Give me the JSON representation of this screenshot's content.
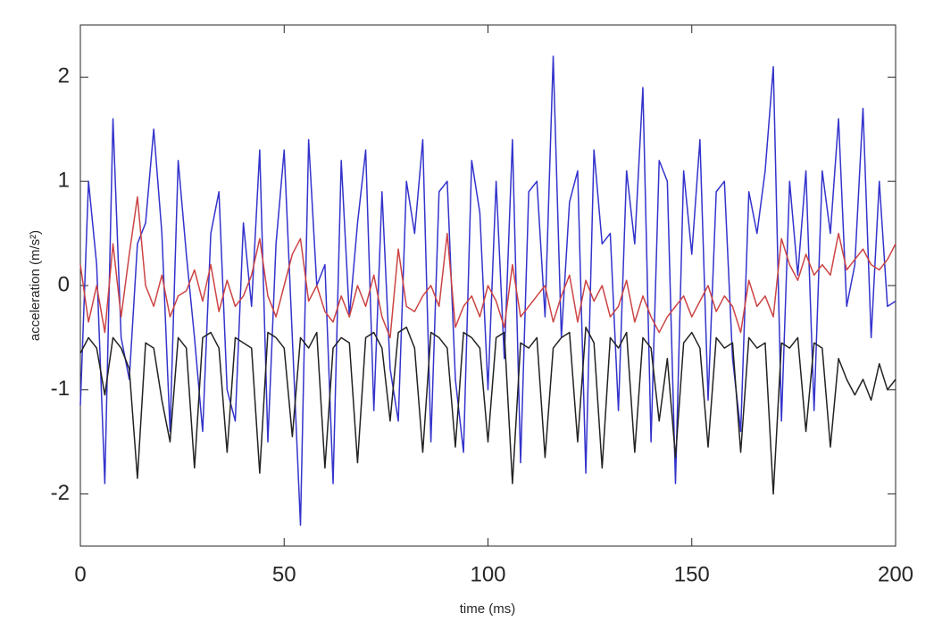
{
  "chart_data": {
    "type": "line",
    "xlabel": "time (ms)",
    "ylabel": "acceleration (m/s²)",
    "xlim": [
      0,
      200
    ],
    "ylim": [
      -2.5,
      2.5
    ],
    "xticks": [
      0,
      50,
      100,
      150,
      200
    ],
    "yticks": [
      -2,
      -1,
      0,
      1,
      2
    ],
    "grid": false,
    "x": [
      0,
      2,
      4,
      6,
      8,
      10,
      12,
      14,
      16,
      18,
      20,
      22,
      24,
      26,
      28,
      30,
      32,
      34,
      36,
      38,
      40,
      42,
      44,
      46,
      48,
      50,
      52,
      54,
      56,
      58,
      60,
      62,
      64,
      66,
      68,
      70,
      72,
      74,
      76,
      78,
      80,
      82,
      84,
      86,
      88,
      90,
      92,
      94,
      96,
      98,
      100,
      102,
      104,
      106,
      108,
      110,
      112,
      114,
      116,
      118,
      120,
      122,
      124,
      126,
      128,
      130,
      132,
      134,
      136,
      138,
      140,
      142,
      144,
      146,
      148,
      150,
      152,
      154,
      156,
      158,
      160,
      162,
      164,
      166,
      168,
      170,
      172,
      174,
      176,
      178,
      180,
      182,
      184,
      186,
      188,
      190,
      192,
      194,
      196,
      198,
      200
    ],
    "series": [
      {
        "color": "#3333cc",
        "values": [
          -1.15,
          1.0,
          0.2,
          -1.9,
          1.6,
          -0.5,
          -0.9,
          0.4,
          0.6,
          1.5,
          0.5,
          -1.4,
          1.2,
          0.3,
          -0.5,
          -1.4,
          0.5,
          0.9,
          -1.0,
          -1.3,
          0.6,
          -0.2,
          1.3,
          -1.5,
          0.4,
          1.3,
          -0.5,
          -2.3,
          1.4,
          0.0,
          0.2,
          -1.9,
          1.2,
          -0.3,
          0.6,
          1.3,
          -1.2,
          0.9,
          -0.8,
          -1.3,
          1.0,
          0.5,
          1.4,
          -1.5,
          0.9,
          1.0,
          -0.9,
          -1.6,
          1.2,
          0.7,
          -1.0,
          1.0,
          -0.7,
          1.4,
          -1.7,
          0.9,
          1.0,
          -0.3,
          2.2,
          -0.5,
          0.8,
          1.1,
          -1.8,
          1.3,
          0.4,
          0.5,
          -1.2,
          1.1,
          0.4,
          1.9,
          -1.5,
          1.2,
          1.0,
          -1.9,
          1.1,
          0.3,
          1.4,
          -1.1,
          0.9,
          1.0,
          -0.7,
          -1.4,
          0.9,
          0.5,
          1.1,
          2.1,
          -1.3,
          1.0,
          0.1,
          1.1,
          -1.2,
          1.1,
          0.5,
          1.6,
          -0.2,
          0.2,
          1.7,
          -0.5,
          1.0,
          -0.2,
          -0.15
        ]
      },
      {
        "color": "#cc4444",
        "values": [
          0.2,
          -0.35,
          0.0,
          -0.45,
          0.4,
          -0.3,
          0.3,
          0.85,
          0.0,
          -0.2,
          0.1,
          -0.3,
          -0.1,
          -0.05,
          0.15,
          -0.15,
          0.2,
          -0.25,
          0.05,
          -0.2,
          -0.1,
          0.1,
          0.45,
          -0.1,
          -0.3,
          0.0,
          0.3,
          0.45,
          -0.15,
          0.0,
          -0.25,
          -0.35,
          -0.1,
          -0.3,
          0.0,
          -0.2,
          0.1,
          -0.3,
          -0.5,
          0.35,
          -0.2,
          -0.25,
          -0.1,
          0.0,
          -0.2,
          0.5,
          -0.4,
          -0.2,
          -0.1,
          -0.3,
          0.0,
          -0.15,
          -0.4,
          0.2,
          -0.3,
          -0.2,
          -0.1,
          0.0,
          -0.35,
          -0.1,
          0.1,
          -0.35,
          0.05,
          -0.15,
          0.0,
          -0.3,
          -0.2,
          0.05,
          -0.35,
          -0.1,
          -0.3,
          -0.45,
          -0.3,
          -0.2,
          -0.1,
          -0.3,
          -0.15,
          0.0,
          -0.25,
          -0.1,
          -0.2,
          -0.45,
          0.05,
          -0.2,
          -0.1,
          -0.3,
          0.45,
          0.2,
          0.05,
          0.3,
          0.1,
          0.2,
          0.1,
          0.5,
          0.15,
          0.25,
          0.35,
          0.2,
          0.15,
          0.25,
          0.4
        ]
      },
      {
        "color": "#222222",
        "values": [
          -0.65,
          -0.5,
          -0.6,
          -1.05,
          -0.5,
          -0.6,
          -0.8,
          -1.85,
          -0.55,
          -0.6,
          -1.1,
          -1.5,
          -0.5,
          -0.6,
          -1.75,
          -0.5,
          -0.45,
          -0.6,
          -1.6,
          -0.5,
          -0.55,
          -0.6,
          -1.8,
          -0.45,
          -0.5,
          -0.6,
          -1.45,
          -0.5,
          -0.6,
          -0.45,
          -1.75,
          -0.6,
          -0.5,
          -0.55,
          -1.7,
          -0.5,
          -0.45,
          -0.6,
          -1.3,
          -0.45,
          -0.4,
          -0.6,
          -1.6,
          -0.45,
          -0.5,
          -0.6,
          -1.55,
          -0.45,
          -0.5,
          -0.6,
          -1.5,
          -0.5,
          -0.45,
          -1.9,
          -0.55,
          -0.6,
          -0.5,
          -1.65,
          -0.6,
          -0.5,
          -0.45,
          -1.5,
          -0.4,
          -0.55,
          -1.75,
          -0.5,
          -0.6,
          -0.45,
          -1.6,
          -0.5,
          -0.6,
          -1.3,
          -0.7,
          -1.65,
          -0.55,
          -0.45,
          -0.6,
          -1.55,
          -0.5,
          -0.6,
          -0.55,
          -1.6,
          -0.5,
          -0.6,
          -0.55,
          -2.0,
          -0.55,
          -0.6,
          -0.5,
          -1.4,
          -0.55,
          -0.6,
          -1.55,
          -0.7,
          -0.9,
          -1.05,
          -0.9,
          -1.1,
          -0.75,
          -1.0,
          -0.9
        ]
      }
    ]
  }
}
